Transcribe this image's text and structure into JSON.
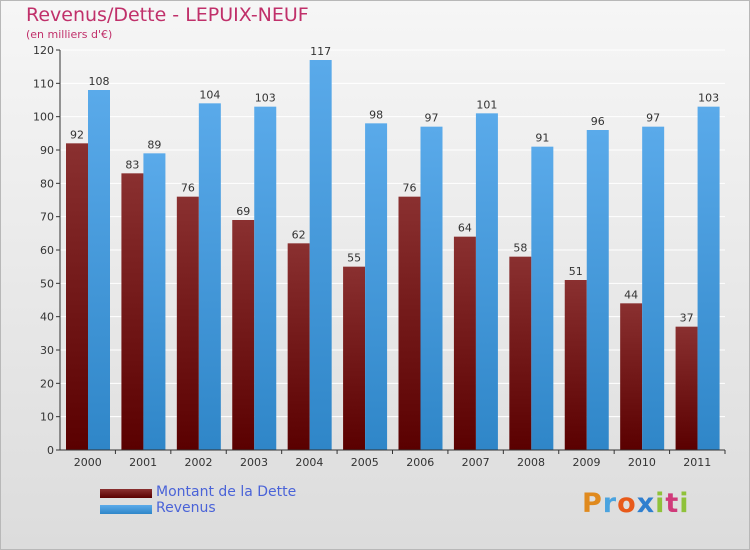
{
  "chart": {
    "title": "Revenus/Dette - LEPUIX-NEUF",
    "subtitle": "(en milliers d'€)"
  },
  "legend": {
    "debt_label": "Montant de la Dette",
    "revenue_label": "Revenus"
  },
  "logo": {
    "text": "Proxiti"
  },
  "colors": {
    "debt_top": "#8a3030",
    "debt_bottom": "#5a0000",
    "revenue_top": "#5aaaea",
    "revenue_bottom": "#2f86c8",
    "axis": "#333333",
    "grid": "#ffffff",
    "title": "#c0306a",
    "legend_text": "#4a63d8"
  },
  "chart_data": {
    "type": "bar",
    "title": "Revenus/Dette - LEPUIX-NEUF",
    "subtitle": "(en milliers d'€)",
    "categories": [
      "2000",
      "2001",
      "2002",
      "2003",
      "2004",
      "2005",
      "2006",
      "2007",
      "2008",
      "2009",
      "2010",
      "2011"
    ],
    "series": [
      {
        "name": "Montant de la Dette",
        "values": [
          92,
          83,
          76,
          69,
          62,
          55,
          76,
          64,
          58,
          51,
          44,
          37
        ]
      },
      {
        "name": "Revenus",
        "values": [
          108,
          89,
          104,
          103,
          117,
          98,
          97,
          101,
          91,
          96,
          97,
          103
        ]
      }
    ],
    "yticks": [
      0,
      10,
      20,
      30,
      40,
      50,
      60,
      70,
      80,
      90,
      100,
      110,
      120
    ],
    "ylim": [
      0,
      120
    ],
    "grid": true,
    "legend": "bottom-left"
  }
}
